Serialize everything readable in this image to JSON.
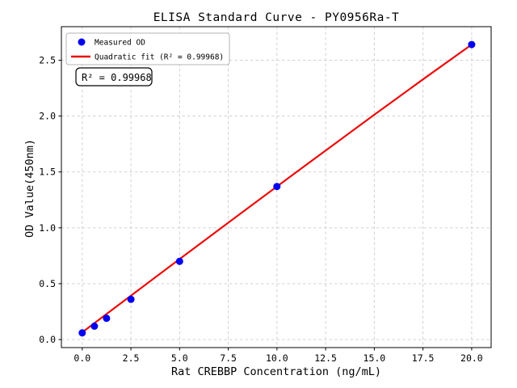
{
  "chart_data": {
    "type": "scatter",
    "title": "ELISA Standard Curve - PY0956Ra-T",
    "xlabel": "Rat CREBBP Concentration (ng/mL)",
    "ylabel": "OD Value(450nm)",
    "xlim": [
      -1.07,
      21.0
    ],
    "ylim": [
      -0.072,
      2.8
    ],
    "x_ticks": [
      0.0,
      2.5,
      5.0,
      7.5,
      10.0,
      12.5,
      15.0,
      17.5,
      20.0
    ],
    "x_tick_labels": [
      "0.0",
      "2.5",
      "5.0",
      "7.5",
      "10.0",
      "12.5",
      "15.0",
      "17.5",
      "20.0"
    ],
    "y_ticks": [
      0.0,
      0.5,
      1.0,
      1.5,
      2.0,
      2.5
    ],
    "y_tick_labels": [
      "0.0",
      "0.5",
      "1.0",
      "1.5",
      "2.0",
      "2.5"
    ],
    "grid": true,
    "series": [
      {
        "name": "Measured OD",
        "type": "scatter",
        "color": "#0000f0",
        "marker_radius": 4.5,
        "x": [
          0,
          0.625,
          1.25,
          2.5,
          5,
          10,
          20
        ],
        "y": [
          0.06,
          0.12,
          0.19,
          0.36,
          0.7,
          1.37,
          2.64
        ]
      },
      {
        "name": "Quadratic fit (R² = 0.99968)",
        "type": "line",
        "color": "#ec0b0b",
        "line_width": 2.2,
        "x": [
          0,
          2.5,
          5,
          7.5,
          10,
          12.5,
          15,
          17.5,
          20
        ],
        "y": [
          0.065,
          0.393,
          0.72,
          1.046,
          1.37,
          1.692,
          2.012,
          2.328,
          2.64
        ]
      }
    ],
    "legend": {
      "position": "upper left",
      "entries": [
        "Measured OD",
        "Quadratic fit (R² = 0.99968)"
      ]
    },
    "annotation": "R² = 0.99968",
    "r_squared": 0.99968
  }
}
